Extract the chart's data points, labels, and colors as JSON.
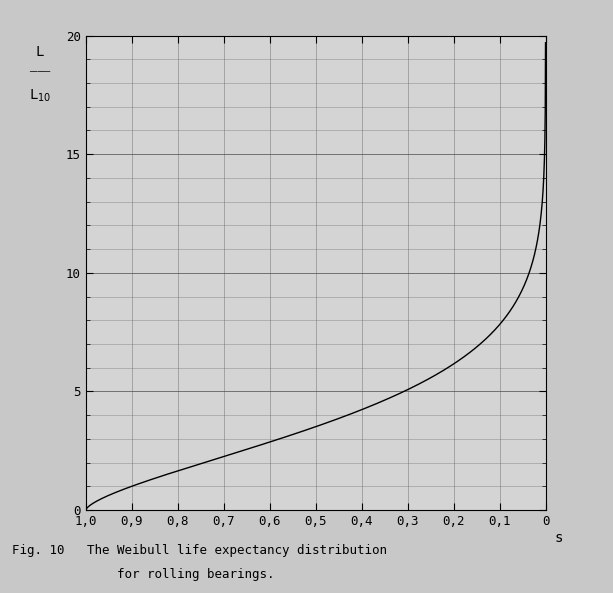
{
  "title": "",
  "xlabel": "s",
  "xlim": [
    0.0,
    1.0
  ],
  "ylim": [
    0,
    20
  ],
  "xticks": [
    0.0,
    0.1,
    0.2,
    0.3,
    0.4,
    0.5,
    0.6,
    0.7,
    0.8,
    0.9,
    1.0
  ],
  "xtick_labels": [
    "0",
    "0,1",
    "0,2",
    "0,3",
    "0,4",
    "0,5",
    "0,6",
    "0,7",
    "0,8",
    "0,9",
    "1,0"
  ],
  "yticks": [
    0,
    5,
    10,
    15,
    20
  ],
  "weibull_e": 1.5,
  "ln_S0": -0.10536051565,
  "background_color": "#c8c8c8",
  "plot_bg_color": "#d4d4d4",
  "line_color": "#000000",
  "grid_major_color": "#444444",
  "grid_minor_color": "#666666",
  "caption_line1": "Fig. 10   The Weibull life expectancy distribution",
  "caption_line2": "              for rolling bearings.",
  "ylabel_top": "L",
  "ylabel_bot": "L",
  "ylabel_sub": "10",
  "figsize": [
    6.13,
    5.93
  ],
  "dpi": 100
}
